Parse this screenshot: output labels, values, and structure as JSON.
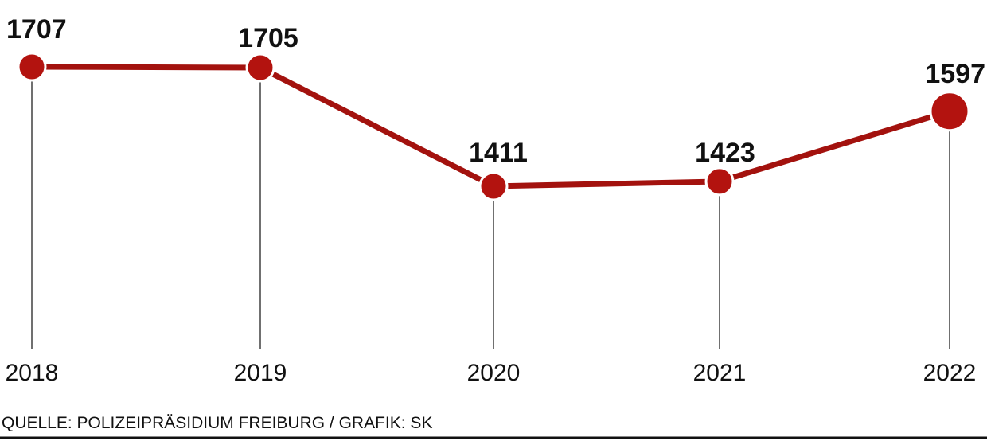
{
  "chart_data": {
    "type": "line",
    "categories": [
      "2018",
      "2019",
      "2020",
      "2021",
      "2022"
    ],
    "values": [
      1707,
      1705,
      1411,
      1423,
      1597
    ],
    "data_labels": [
      "1707",
      "1705",
      "1411",
      "1423",
      "1597"
    ],
    "title": "",
    "xlabel": "",
    "ylabel": "",
    "grid": false,
    "highlight_last_point": true,
    "colors": {
      "line": "#a3120e",
      "marker": "#b3130f",
      "marker_stroke": "#ffffff",
      "drop_line": "#111111",
      "text": "#111111",
      "baseline": "#111111"
    }
  },
  "source": "QUELLE: POLIZEIPRÄSIDIUM FREIBURG / GRAFIK: SK"
}
